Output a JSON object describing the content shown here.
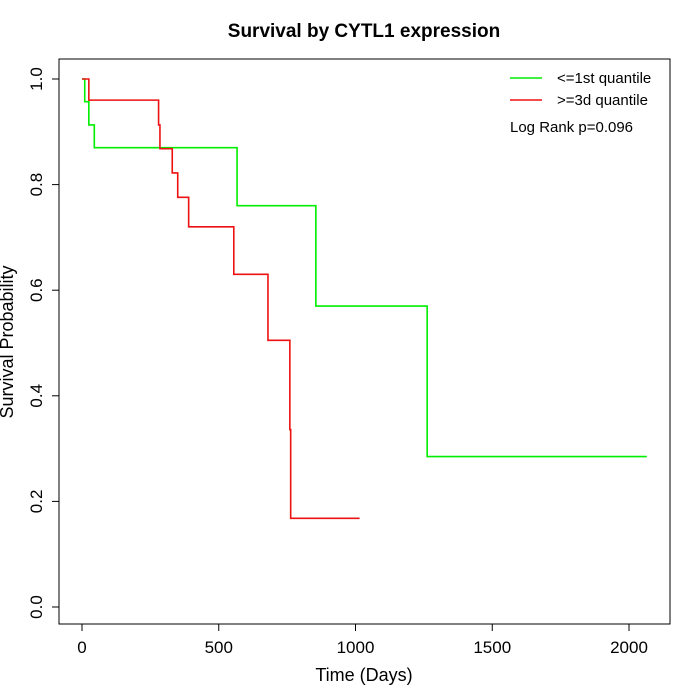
{
  "chart_data": {
    "type": "line",
    "title": "Survival by CYTL1 expression",
    "xlabel": "Time (Days)",
    "ylabel": "Survival Probability",
    "xlim": [
      0,
      2070
    ],
    "ylim": [
      0,
      1
    ],
    "x_ticks": [
      0,
      500,
      1000,
      1500,
      2000
    ],
    "x_tick_labels": [
      "0",
      "500",
      "1000",
      "1500",
      "2000"
    ],
    "y_ticks": [
      0,
      0.2,
      0.4,
      0.6,
      0.8,
      1.0
    ],
    "y_tick_labels": [
      "0.0",
      "0.2",
      "0.4",
      "0.6",
      "0.8",
      "1.0"
    ],
    "grid": false,
    "legend_position": "top-right",
    "annotation": "Log Rank p=0.096",
    "series": [
      {
        "name": "<=1st quantile",
        "color": "#00ee00",
        "steps": [
          [
            0,
            1.0
          ],
          [
            10,
            0.957
          ],
          [
            25,
            0.913
          ],
          [
            45,
            0.87
          ],
          [
            567,
            0.76
          ],
          [
            855,
            0.57
          ],
          [
            1262,
            0.285
          ],
          [
            2065,
            0.285
          ]
        ]
      },
      {
        "name": ">=3d quantile",
        "color": "#ee1111",
        "steps": [
          [
            0,
            1.0
          ],
          [
            25,
            0.96
          ],
          [
            280,
            0.913
          ],
          [
            285,
            0.868
          ],
          [
            330,
            0.822
          ],
          [
            350,
            0.776
          ],
          [
            390,
            0.72
          ],
          [
            555,
            0.63
          ],
          [
            680,
            0.505
          ],
          [
            760,
            0.336
          ],
          [
            763,
            0.168
          ],
          [
            1015,
            0.168
          ]
        ]
      }
    ]
  }
}
